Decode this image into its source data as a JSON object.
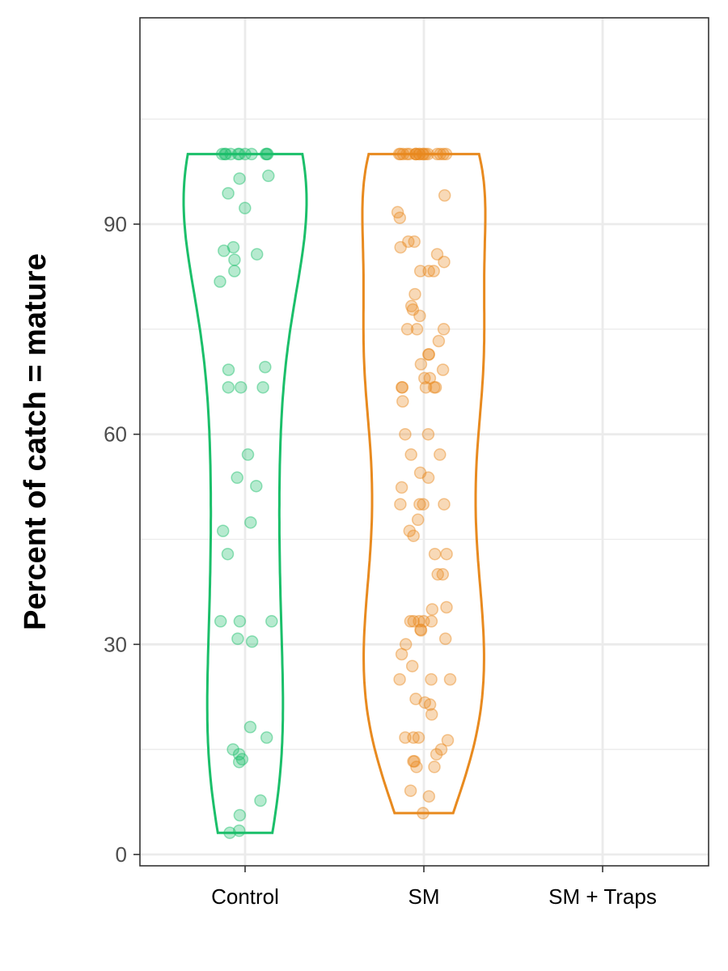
{
  "chart_data": {
    "type": "violin",
    "title": "",
    "xlabel": "",
    "ylabel": "Percent of catch = mature",
    "categories": [
      "Control",
      "SM",
      "SM + Traps"
    ],
    "yticks": [
      0,
      30,
      60,
      90
    ],
    "ylim": [
      -1.5,
      119
    ],
    "grid": true,
    "colors": {
      "Control": "#1bbf6a",
      "SM": "#e88a1f"
    },
    "series": [
      {
        "category": "Control",
        "points": [
          100,
          100,
          100,
          100,
          100,
          100,
          100,
          100,
          100,
          100,
          100,
          96.9,
          96.5,
          94.4,
          92.3,
          86.7,
          86.2,
          85.7,
          84.9,
          83.3,
          81.8,
          69.6,
          69.2,
          66.7,
          66.7,
          66.7,
          57.1,
          53.8,
          52.6,
          47.4,
          46.2,
          42.9,
          33.3,
          33.3,
          33.3,
          30.8,
          30.4,
          18.2,
          16.7,
          15.0,
          14.3,
          13.6,
          13.2,
          7.7,
          5.6,
          3.4,
          3.1
        ]
      },
      {
        "category": "SM",
        "points": [
          100,
          100,
          100,
          100,
          100,
          100,
          100,
          100,
          100,
          100,
          100,
          100,
          100,
          100,
          100,
          100,
          100,
          100,
          94.1,
          91.7,
          90.9,
          87.5,
          87.5,
          86.7,
          85.7,
          84.6,
          83.3,
          83.3,
          83.3,
          80.0,
          78.3,
          77.8,
          76.9,
          75.0,
          75.0,
          75.0,
          73.3,
          71.4,
          71.4,
          70.0,
          69.2,
          68.0,
          68.0,
          66.7,
          66.7,
          66.7,
          66.7,
          66.7,
          64.7,
          60.0,
          60.0,
          57.1,
          57.1,
          54.5,
          53.8,
          52.4,
          50.0,
          50.0,
          50.0,
          50.0,
          47.8,
          46.2,
          45.5,
          42.9,
          42.9,
          40.0,
          40.0,
          35.3,
          35.0,
          33.3,
          33.3,
          33.3,
          33.3,
          33.3,
          32.1,
          32.0,
          30.8,
          30.0,
          28.6,
          26.9,
          25.0,
          25.0,
          25.0,
          22.2,
          21.7,
          21.4,
          20.0,
          16.7,
          16.7,
          16.7,
          16.3,
          15.0,
          14.3,
          13.3,
          13.3,
          12.5,
          12.5,
          9.1,
          8.3,
          5.9
        ]
      },
      {
        "category": "SM + Traps",
        "points": []
      }
    ]
  }
}
